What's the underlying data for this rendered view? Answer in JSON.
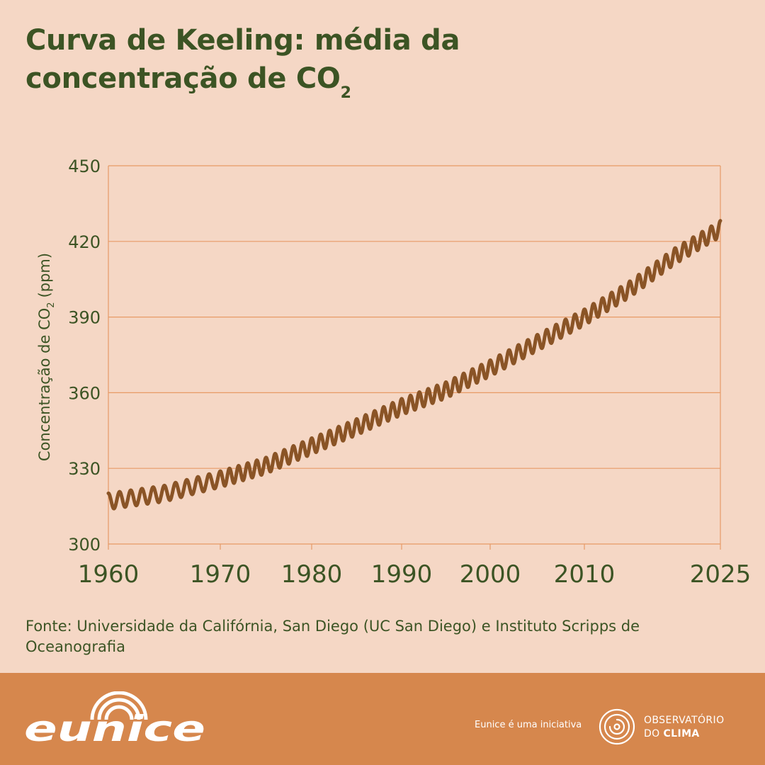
{
  "title": {
    "line1": "Curva de Keeling: média da",
    "line2": "concentração de CO",
    "subscript": "2"
  },
  "source": "Fonte: Universidade da Califórnia, San Diego (UC San Diego) e Instituto Scripps de Oceanografia",
  "footer": {
    "brand": "eunice",
    "tagline": "Eunice é uma iniciativa",
    "partner_line1": "OBSERVATÓRIO",
    "partner_line2a": "DO",
    "partner_line2b": "CLIMA",
    "icons": [
      "eunice-logo",
      "observatorio-clima-logo"
    ]
  },
  "colors": {
    "background": "#f5d7c5",
    "title": "#3c5424",
    "line": "#8a5426",
    "grid": "#e79a66",
    "footer": "#d6874d"
  },
  "chart_data": {
    "type": "line",
    "ylabel_main": "Concentração de CO",
    "ylabel_sub": "2",
    "ylabel_unit": "(ppm)",
    "xlabel": "",
    "xlim": [
      1960,
      2025
    ],
    "ylim": [
      300,
      450
    ],
    "xticks": [
      1960,
      1970,
      1980,
      1990,
      2000,
      2010,
      2025
    ],
    "yticks": [
      300,
      330,
      360,
      390,
      420,
      450
    ],
    "grid": true,
    "seasonal_amplitude_ppm": 3.2,
    "series": [
      {
        "name": "",
        "x": [
          1960,
          1965,
          1970,
          1975,
          1980,
          1985,
          1990,
          1995,
          2000,
          2005,
          2010,
          2015,
          2020,
          2025
        ],
        "values": [
          316.9,
          320.0,
          325.7,
          331.1,
          338.8,
          346.4,
          354.4,
          361.0,
          369.7,
          379.8,
          389.9,
          401.0,
          414.2,
          425.0
        ]
      }
    ]
  }
}
